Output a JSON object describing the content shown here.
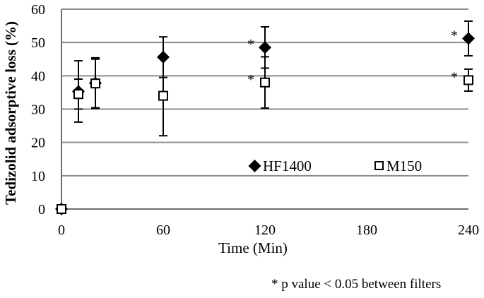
{
  "chart_data": {
    "type": "scatter",
    "xlabel": "Time (Min)",
    "ylabel": "Tedizolid adsorptive loss (%)",
    "xlim": [
      0,
      240
    ],
    "ylim": [
      0,
      60
    ],
    "xticks": [
      0,
      60,
      120,
      180,
      240
    ],
    "yticks": [
      0,
      10,
      20,
      30,
      40,
      50,
      60
    ],
    "grid": "horizontal",
    "legend_position": "inside-lower-right",
    "series": [
      {
        "name": "HF1400",
        "marker": "filled-diamond",
        "color": "#000000",
        "x": [
          0,
          10,
          20,
          60,
          120,
          240
        ],
        "y": [
          0,
          35.3,
          37.8,
          45.6,
          48.5,
          51.2
        ],
        "yerr": [
          0,
          9.2,
          7.6,
          6.1,
          6.2,
          5.2
        ]
      },
      {
        "name": "M150",
        "marker": "open-square",
        "color": "#000000",
        "x": [
          0,
          10,
          20,
          60,
          120,
          240
        ],
        "y": [
          0,
          34.5,
          37.7,
          34.0,
          38.0,
          38.7
        ],
        "yerr": [
          0,
          4.5,
          7.3,
          12.0,
          7.7,
          3.3
        ]
      }
    ],
    "annotations": [
      {
        "text": "*",
        "x": 120,
        "y": 48.5
      },
      {
        "text": "*",
        "x": 120,
        "y": 38.0
      },
      {
        "text": "*",
        "x": 240,
        "y": 51.2
      },
      {
        "text": "*",
        "x": 240,
        "y": 38.7
      }
    ],
    "footnote": "* p value < 0.05 between filters"
  }
}
